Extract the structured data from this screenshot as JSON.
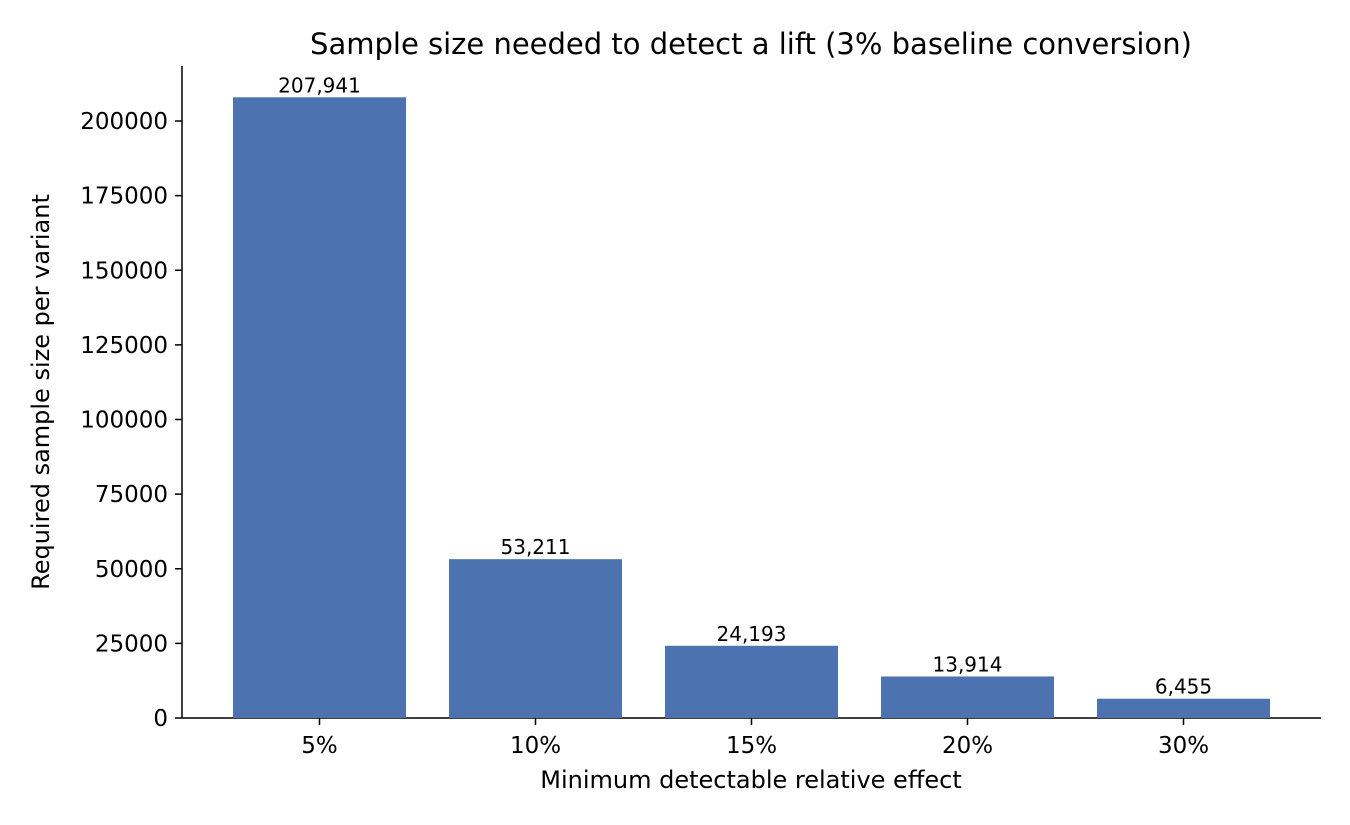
{
  "chart_data": {
    "type": "bar",
    "title": "Sample size needed to detect a lift (3% baseline conversion)",
    "xlabel": "Minimum detectable relative effect",
    "ylabel": "Required sample size per variant",
    "categories": [
      "5%",
      "10%",
      "15%",
      "20%",
      "30%"
    ],
    "values": [
      207941,
      53211,
      24193,
      13914,
      6455
    ],
    "data_labels": [
      "207,941",
      "53,211",
      "24,193",
      "13,914",
      "6,455"
    ],
    "ylim": [
      0,
      218000
    ],
    "yticks": [
      0,
      25000,
      50000,
      75000,
      100000,
      125000,
      150000,
      175000,
      200000
    ],
    "ytick_labels": [
      "0",
      "25000",
      "50000",
      "75000",
      "100000",
      "125000",
      "150000",
      "175000",
      "200000"
    ],
    "bar_color": "#4c72b0",
    "grid": false,
    "spines": "left-bottom"
  }
}
